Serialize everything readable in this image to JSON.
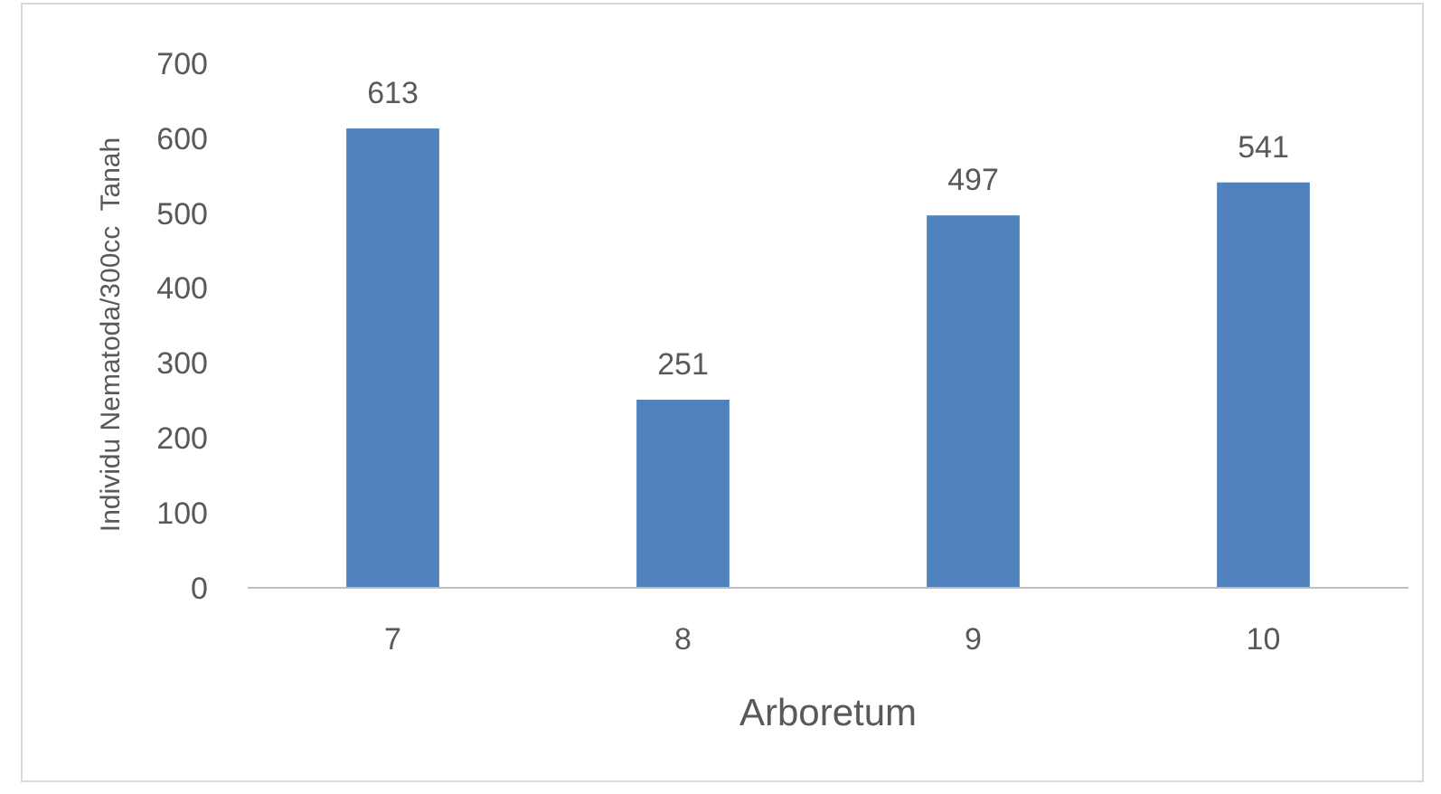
{
  "chart_data": {
    "type": "bar",
    "xlabel": "Arboretum",
    "ylabel": "Individu Nematoda/300cc  Tanah",
    "categories": [
      "7",
      "8",
      "9",
      "10"
    ],
    "values": [
      613,
      251,
      497,
      541
    ],
    "color": "#4f81bd",
    "ylim": [
      0,
      700
    ],
    "yticks": [
      0,
      100,
      200,
      300,
      400,
      500,
      600,
      700
    ],
    "data_labels": true,
    "grid": false
  }
}
